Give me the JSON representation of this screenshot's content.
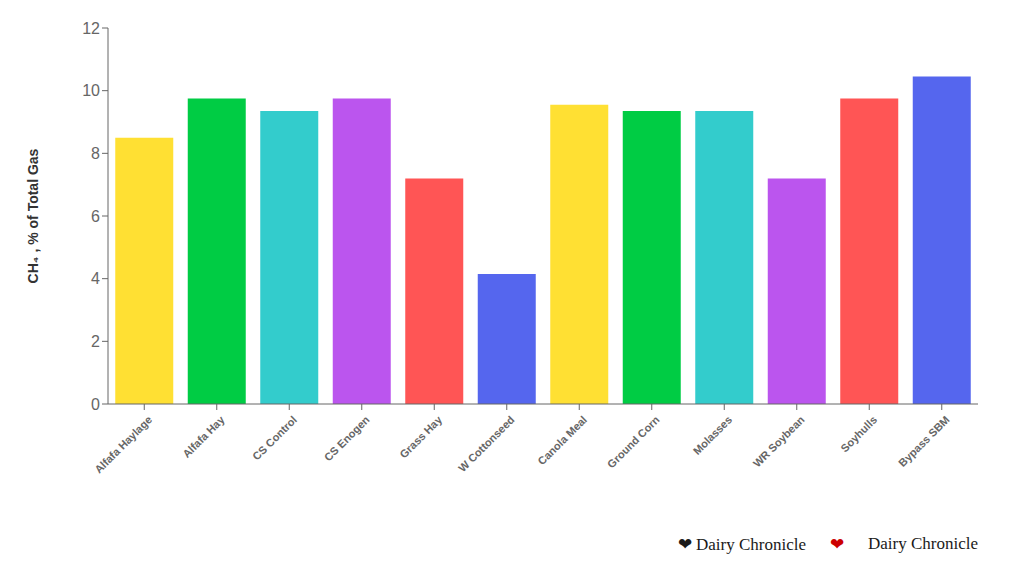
{
  "chart_data": {
    "type": "bar",
    "categories": [
      "Alfafa Haylage",
      "Alfafa Hay",
      "CS Control",
      "CS Enogen",
      "Grass Hay",
      "W Cottonseed",
      "Canola Meal",
      "Ground Corn",
      "Molasses",
      "WR Soybean",
      "Soyhulls",
      "Bypass SBM"
    ],
    "values": [
      8.5,
      9.75,
      9.35,
      9.75,
      7.2,
      4.15,
      9.55,
      9.35,
      9.35,
      7.2,
      9.75,
      10.45
    ],
    "colors": [
      "#FFE033",
      "#00CC44",
      "#33CCCC",
      "#BB55EE",
      "#FF5555",
      "#5566EE",
      "#FFE033",
      "#00CC44",
      "#33CCCC",
      "#BB55EE",
      "#FF5555",
      "#5566EE"
    ],
    "y_label": "CH₄ , % of Total Gas",
    "ylim": [
      0,
      12
    ],
    "yticks": [
      0,
      2,
      4,
      6,
      8,
      10,
      12
    ],
    "grid": false,
    "annotations": [
      {
        "text": "❤ Dairy Chronicle",
        "color": "#1a1a1a"
      },
      {
        "text": "❤",
        "color": "#CC0000"
      },
      {
        "text": "Dairy Chronicle",
        "color": "#1a1a1a"
      }
    ]
  }
}
